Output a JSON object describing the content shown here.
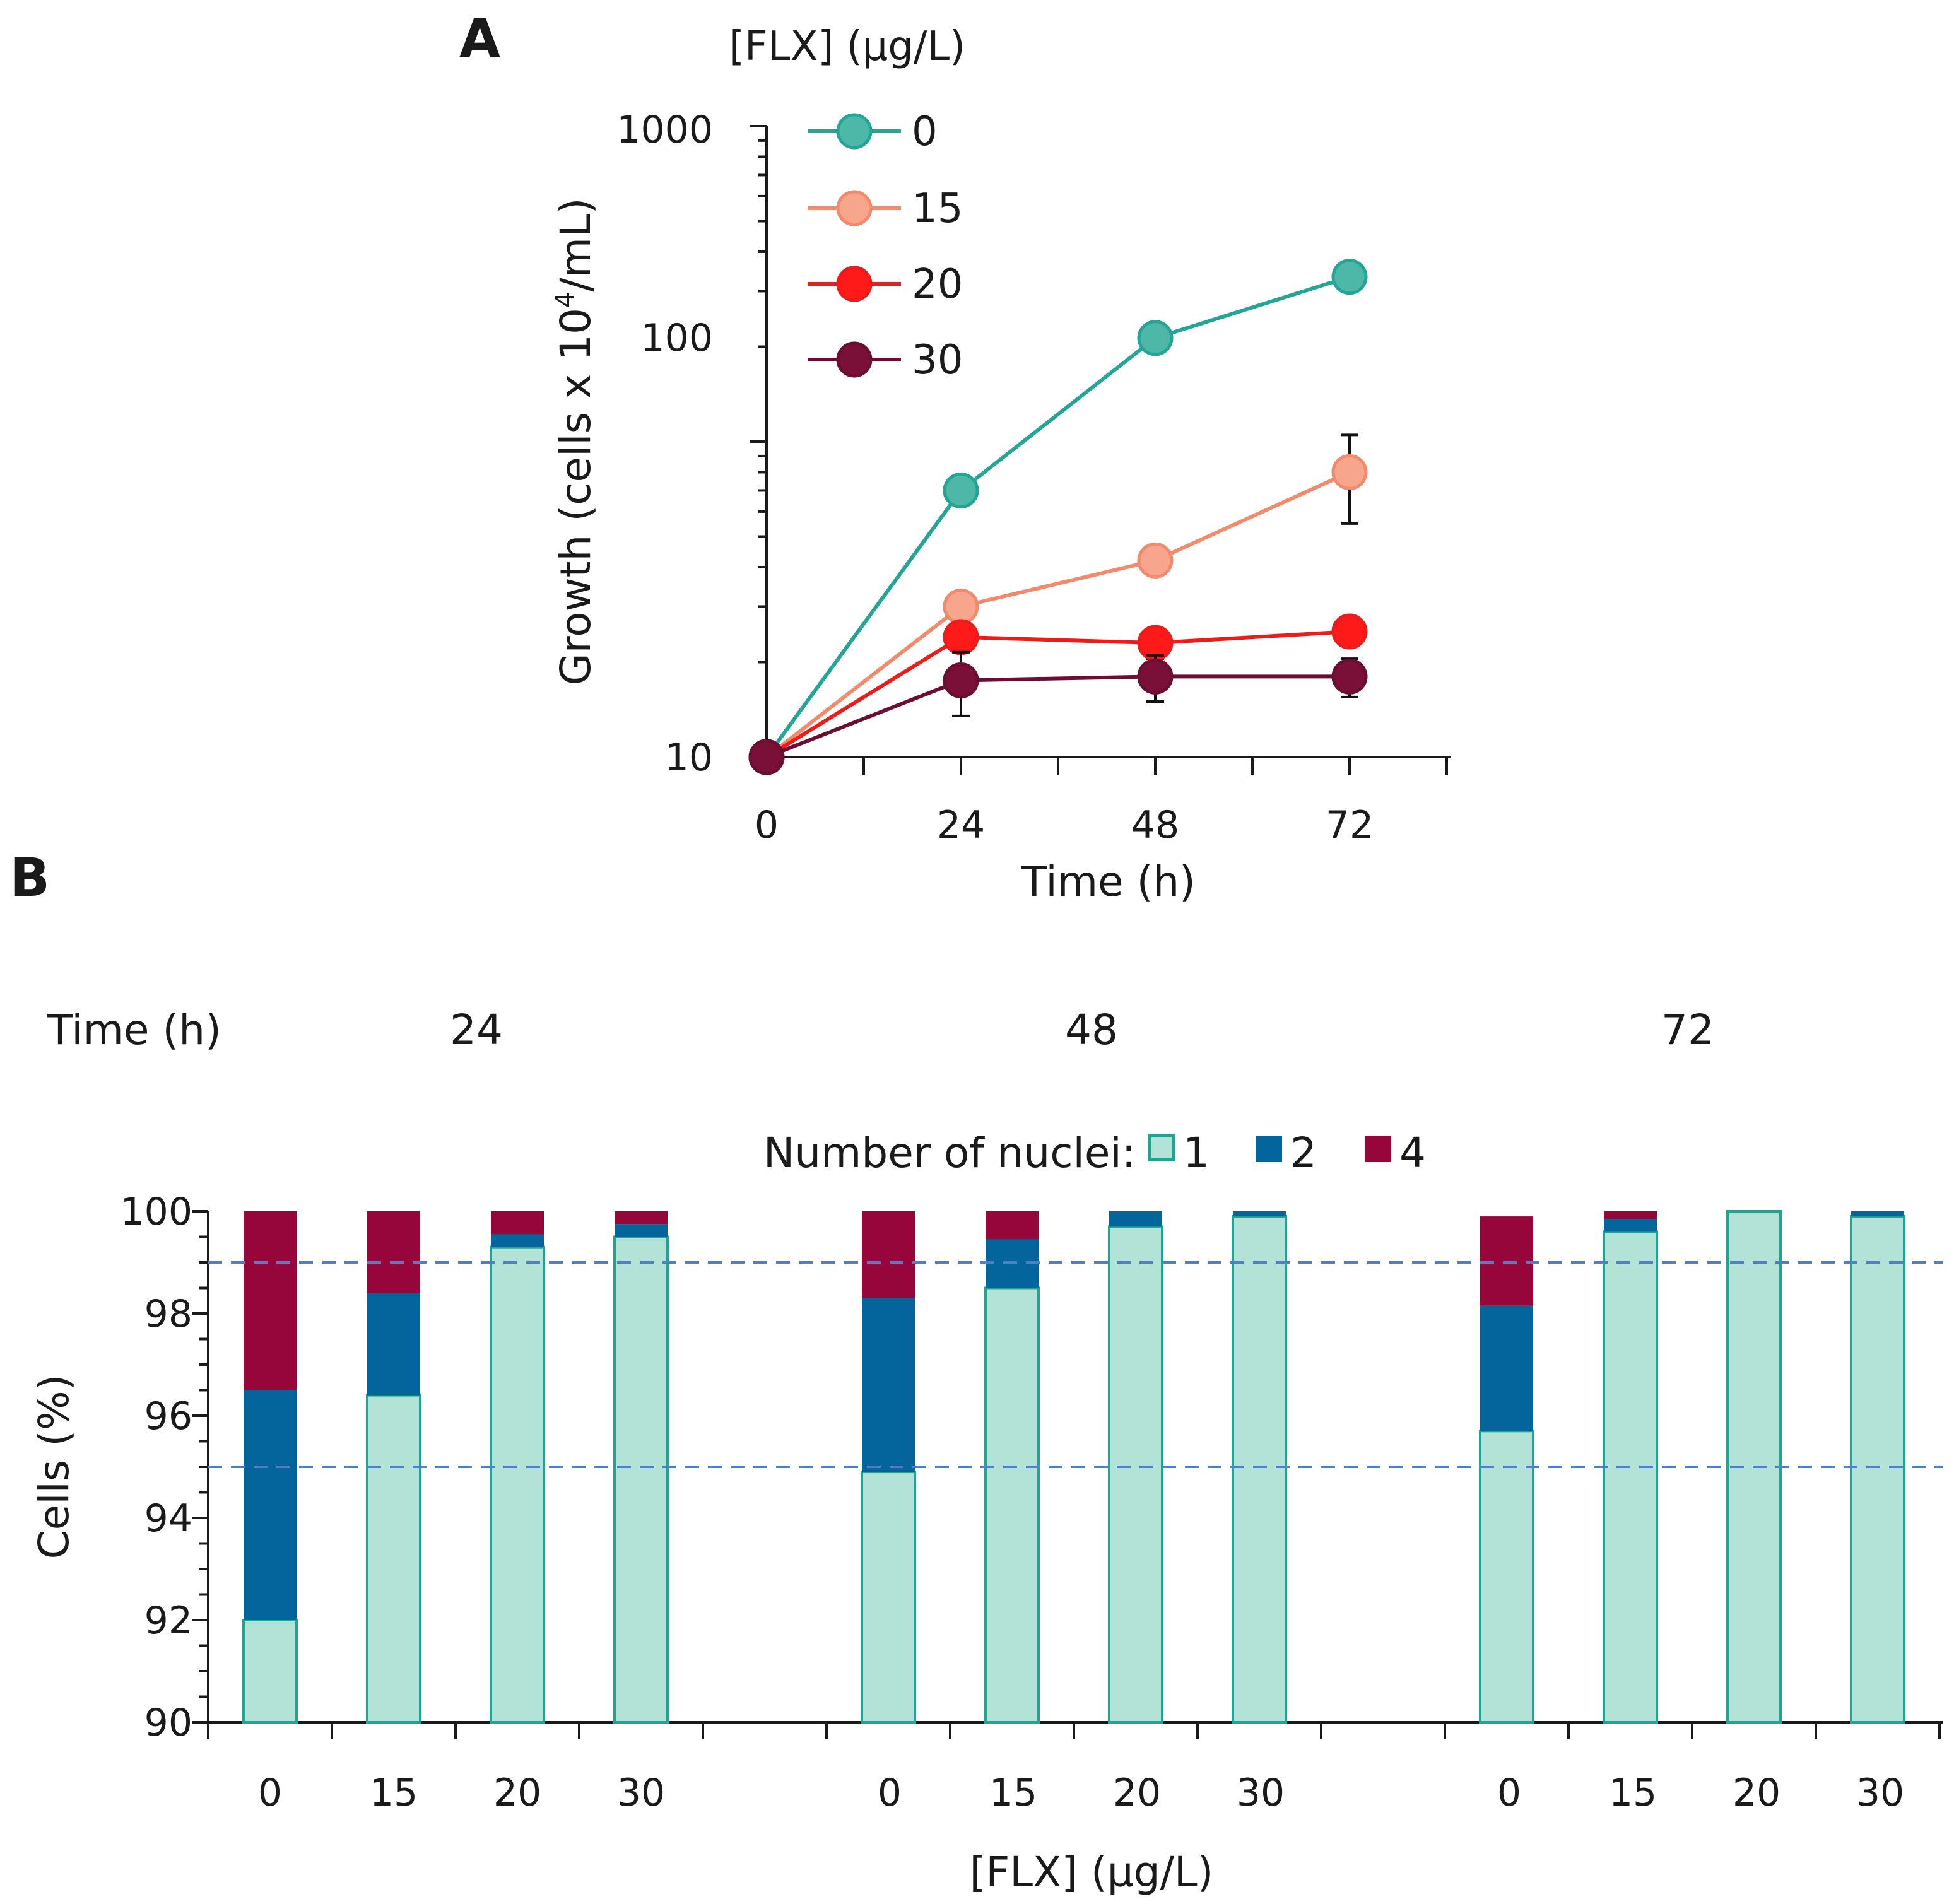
{
  "colors": {
    "series_0": "#24a596",
    "series_0_fill": "#4db8a8",
    "series_15": "#f28a6c",
    "series_15_fill": "#f7a58c",
    "series_20": "#ee1b1b",
    "series_20_fill": "#ff1a1a",
    "series_30": "#6a0f33",
    "series_30_fill": "#7a1037",
    "nuclei_1_fill": "#b3e3d6",
    "nuclei_1_stroke": "#1fa593",
    "nuclei_2": "#03659b",
    "nuclei_4": "#96063a",
    "threshold_line": "#4f7fc9",
    "axis": "#1a1a1a"
  },
  "chart_data": [
    {
      "panel": "A",
      "type": "line",
      "yscale": "log",
      "legend_title": "[FLX] (µg/L)",
      "legend_position": "top-left",
      "xlabel": "Time (h)",
      "ylabel": "Growth (cells x 10",
      "ylabel_sup": "4",
      "ylabel_end": "/mL)",
      "x": [
        0,
        24,
        48,
        72
      ],
      "x_tick_labels": [
        "0",
        "24",
        "48",
        "72"
      ],
      "xlim": [
        0,
        84
      ],
      "ylim": [
        10,
        1000
      ],
      "y_tick_labels": [
        "10",
        "100",
        "1000"
      ],
      "series": [
        {
          "name": "0",
          "values": [
            10,
            70,
            213,
            333
          ],
          "error": [
            0,
            4,
            14,
            10
          ]
        },
        {
          "name": "15",
          "values": [
            10,
            30,
            42,
            80
          ],
          "error": [
            0,
            2,
            2,
            25
          ]
        },
        {
          "name": "20",
          "values": [
            10,
            24,
            23,
            25
          ],
          "error": [
            0,
            2,
            2.5,
            1.5
          ]
        },
        {
          "name": "30",
          "values": [
            10,
            17.5,
            18,
            18
          ],
          "error": [
            0,
            4,
            3,
            2.5
          ]
        }
      ]
    },
    {
      "panel": "B",
      "type": "bar",
      "stacked": true,
      "group_title": "Time (h)",
      "groups": [
        "24",
        "48",
        "72"
      ],
      "categories": [
        "0",
        "15",
        "20",
        "30"
      ],
      "legend_title": "Number of nuclei:",
      "legend_position": "top-center",
      "xlabel": "[FLX] (µg/L)",
      "ylabel": "Cells (%)",
      "ylim": [
        90,
        100
      ],
      "y_tick_labels": [
        "90",
        "92",
        "94",
        "96",
        "98",
        "100"
      ],
      "reference_lines": [
        95,
        99
      ],
      "series": [
        {
          "name": "1",
          "values": [
            [
              92.0,
              96.4,
              99.3,
              99.5
            ],
            [
              94.9,
              98.5,
              99.7,
              99.9
            ],
            [
              95.7,
              99.6,
              100.0,
              99.9
            ]
          ]
        },
        {
          "name": "2",
          "values": [
            [
              4.5,
              2.0,
              0.25,
              0.25
            ],
            [
              3.4,
              0.95,
              0.3,
              0.1
            ],
            [
              2.45,
              0.25,
              0.0,
              0.1
            ]
          ]
        },
        {
          "name": "4",
          "values": [
            [
              3.5,
              1.6,
              0.45,
              0.25
            ],
            [
              1.7,
              0.55,
              0.0,
              0.0
            ],
            [
              1.75,
              0.15,
              0.0,
              0.0
            ]
          ]
        }
      ]
    }
  ]
}
